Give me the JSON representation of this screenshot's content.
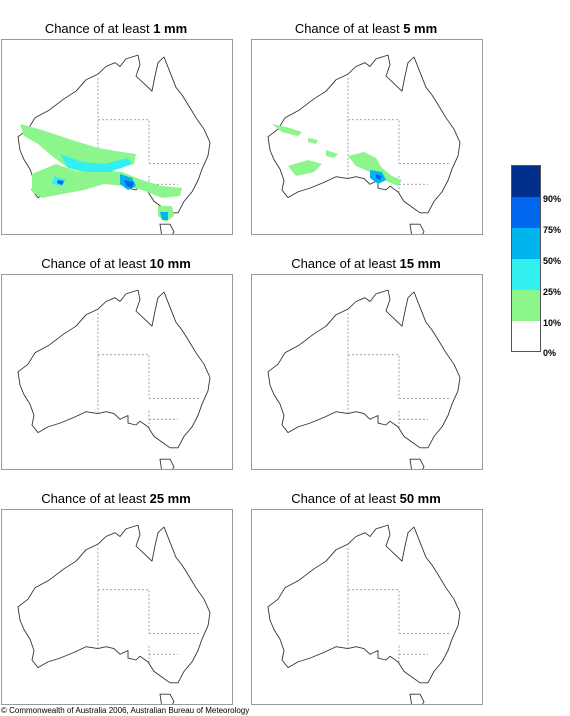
{
  "panels": [
    {
      "prefix": "Chance of at least ",
      "amount": "1 mm"
    },
    {
      "prefix": "Chance of at least ",
      "amount": "5 mm"
    },
    {
      "prefix": "Chance of at least ",
      "amount": "10 mm"
    },
    {
      "prefix": "Chance of at least ",
      "amount": "15 mm"
    },
    {
      "prefix": "Chance of at least ",
      "amount": "25 mm"
    },
    {
      "prefix": "Chance of at least ",
      "amount": "50 mm"
    }
  ],
  "legend": {
    "labels": [
      "90%",
      "75%",
      "50%",
      "25%",
      "10%",
      "0%"
    ],
    "colors": [
      "#00308c",
      "#0066ee",
      "#00b4ee",
      "#33f0f0",
      "#8cf58c",
      "#ffffff"
    ]
  },
  "footer": {
    "copyright": "© Commonwealth of Australia 2006, Australian Bureau of Meteorology"
  }
}
